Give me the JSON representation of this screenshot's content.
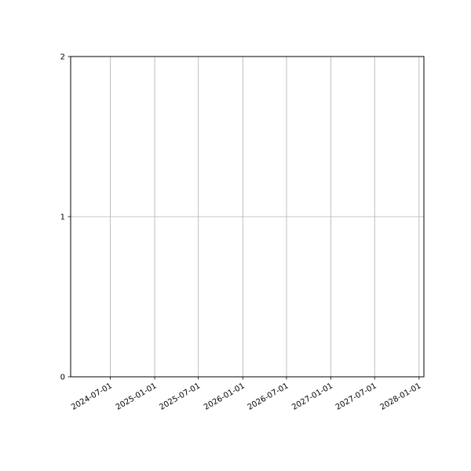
{
  "chart_data": {
    "type": "line",
    "title": "",
    "xlabel": "",
    "ylabel": "",
    "x_scale": "date",
    "xlim": [
      "2024-01-19",
      "2028-01-21"
    ],
    "ylim": [
      0,
      2
    ],
    "x_ticks": [
      "2024-07-01",
      "2025-01-01",
      "2025-07-01",
      "2026-01-01",
      "2026-07-01",
      "2027-01-01",
      "2027-07-01",
      "2028-01-01"
    ],
    "y_ticks": [
      "0",
      "1",
      "2"
    ],
    "grid": true,
    "grid_color": "#b0b0b0",
    "series": []
  }
}
